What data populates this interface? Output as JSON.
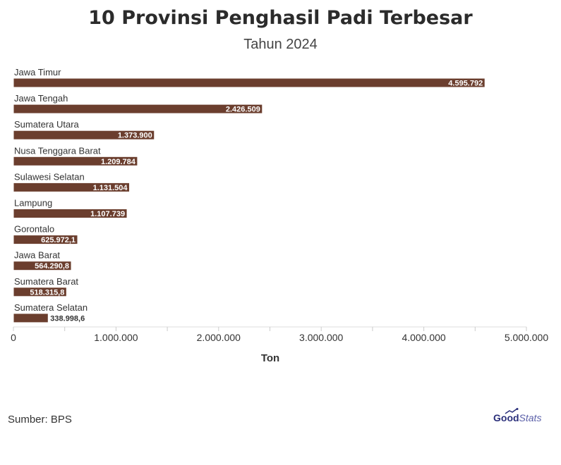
{
  "chart_data": {
    "type": "bar",
    "orientation": "horizontal",
    "title": "10 Provinsi Penghasil Padi Terbesar",
    "subtitle": "Tahun 2024",
    "xlabel": "Ton",
    "ylabel": "",
    "xlim": [
      0,
      5000000
    ],
    "x_ticks": [
      0,
      1000000,
      2000000,
      3000000,
      4000000,
      5000000
    ],
    "x_tick_labels": [
      "0",
      "1.000.000",
      "2.000.000",
      "3.000.000",
      "4.000.000",
      "5.000.000"
    ],
    "categories": [
      "Jawa Timur",
      "Jawa Tengah",
      "Sumatera Utara",
      "Nusa Tenggara Barat",
      "Sulawesi Selatan",
      "Lampung",
      "Gorontalo",
      "Jawa Barat",
      "Sumatera Barat",
      "Sumatera Selatan"
    ],
    "values": [
      4595792,
      2426509,
      1373900,
      1209784,
      1131504,
      1107739,
      625972.1,
      564290.8,
      518315.8,
      338998.6
    ],
    "value_labels": [
      "4.595.792",
      "2.426.509",
      "1.373.900",
      "1.209.784",
      "1.131.504",
      "1.107.739",
      "625.972,1",
      "564.290,8",
      "518.315,8",
      "338.998,6"
    ],
    "bar_color": "#6b3e2e",
    "grid": false
  },
  "source": "Sumber: BPS",
  "brand": {
    "part1": "Good",
    "part2": "Stats"
  }
}
